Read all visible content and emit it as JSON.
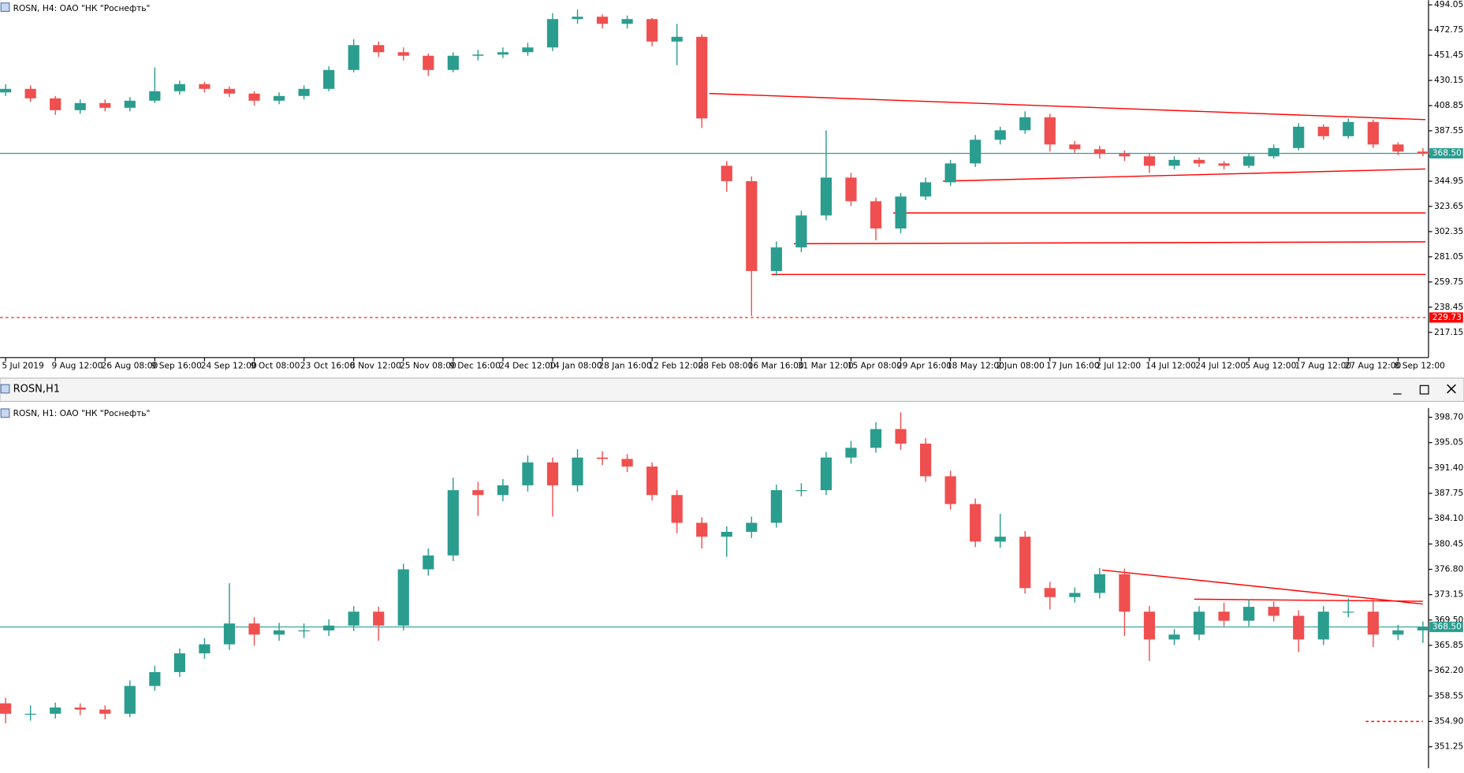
{
  "chart_data": [
    {
      "type": "candlestick",
      "title": "ROSN, H4:  ОАО \"НК \"Роснефть\"",
      "x": [
        "5 Jul 2019",
        null,
        "9 Aug 12:00",
        null,
        "26 Aug 08:00",
        null,
        "9 Sep 16:00",
        null,
        "24 Sep 12:00",
        null,
        "9 Oct 08:00",
        null,
        "23 Oct 16:00",
        null,
        "8 Nov 12:00",
        null,
        "25 Nov 08:00",
        null,
        "9 Dec 16:00",
        null,
        "24 Dec 12:00",
        null,
        "14 Jan 08:00",
        null,
        "28 Jan 16:00",
        null,
        "12 Feb 12:00",
        null,
        "28 Feb 08:00",
        null,
        "16 Mar 16:00",
        null,
        "31 Mar 12:00",
        null,
        "15 Apr 08:00",
        null,
        "29 Apr 16:00",
        null,
        "18 May 12:00",
        null,
        "2 Jun 08:00",
        null,
        "17 Jun 16:00",
        null,
        "2 Jul 12:00",
        null,
        "14 Jul 12:00",
        null,
        "24 Jul 12:00",
        null,
        "5 Aug 12:00",
        null,
        "17 Aug 12:00",
        null,
        "27 Aug 12:00",
        null,
        "8 Sep 12:00",
        null
      ],
      "open": [
        420,
        423,
        415,
        405,
        411,
        407,
        413,
        421,
        427,
        423,
        419,
        413,
        417,
        423,
        439,
        460,
        454,
        451,
        439,
        451,
        452,
        454,
        458,
        482,
        484,
        478,
        482,
        463,
        467,
        358,
        345,
        269,
        289,
        316,
        348,
        328,
        305,
        332,
        344,
        360,
        380,
        388,
        399,
        376,
        372,
        368,
        366,
        358,
        363,
        360,
        358,
        366,
        373,
        391,
        383,
        395,
        376,
        370
      ],
      "high": [
        427,
        426,
        417,
        414,
        414,
        416,
        441,
        430,
        429,
        425,
        421,
        420,
        426,
        442,
        465,
        463,
        458,
        453,
        454,
        456,
        458,
        462,
        487,
        490,
        486,
        485,
        483,
        478,
        469,
        362,
        349,
        294,
        320,
        388,
        352,
        331,
        335,
        348,
        363,
        384,
        391,
        404,
        402,
        379,
        375,
        371,
        369,
        366,
        365,
        362,
        368,
        376,
        394,
        393,
        398,
        397,
        378,
        373
      ],
      "low": [
        417,
        412,
        401,
        402,
        404,
        404,
        411,
        418,
        420,
        416,
        409,
        410,
        414,
        421,
        437,
        450,
        447,
        434,
        437,
        447,
        449,
        451,
        455,
        478,
        474,
        474,
        459,
        443,
        390,
        336,
        231,
        265,
        285,
        312,
        324,
        295,
        301,
        329,
        341,
        357,
        376,
        385,
        370,
        369,
        364,
        362,
        352,
        355,
        357,
        355,
        356,
        364,
        371,
        380,
        381,
        373,
        367,
        366
      ],
      "close": [
        423,
        415,
        405,
        411,
        407,
        413,
        421,
        427,
        423,
        419,
        413,
        417,
        423,
        439,
        460,
        454,
        451,
        439,
        451,
        452,
        454,
        458,
        482,
        484,
        478,
        482,
        463,
        467,
        398,
        345,
        269,
        289,
        316,
        348,
        328,
        305,
        332,
        344,
        360,
        380,
        388,
        399,
        376,
        372,
        368,
        366,
        358,
        363,
        360,
        358,
        366,
        373,
        391,
        383,
        395,
        376,
        370,
        368.5
      ],
      "up_color": "#2a9d8f",
      "down_color": "#ef4f4f",
      "ylim": [
        195.85,
        498
      ],
      "yticks": [
        494.05,
        472.75,
        451.45,
        430.15,
        408.85,
        387.55,
        366.25,
        344.95,
        323.65,
        302.35,
        281.05,
        259.75,
        238.45,
        217.15
      ],
      "price_lines": [
        {
          "value": 368.5,
          "label": "368.50",
          "color": "#2a9d8f",
          "dashed": false
        },
        {
          "value": 229.73,
          "label": "229.73",
          "color": "#ff0000",
          "dashed": true
        }
      ],
      "trendlines": [
        {
          "x": [
            28.3,
            57.1
          ],
          "y": [
            419.1,
            397.0
          ],
          "color": "#ff0000"
        },
        {
          "x": [
            37.7,
            57.1
          ],
          "y": [
            345.0,
            355.3
          ],
          "color": "#ff0000"
        },
        {
          "x": [
            35.7,
            57.1
          ],
          "y": [
            318.1,
            318.1
          ],
          "color": "#ff0000"
        },
        {
          "x": [
            31.7,
            57.1
          ],
          "y": [
            292.1,
            293.7
          ],
          "color": "#ff0000"
        },
        {
          "x": [
            30.8,
            57.1
          ],
          "y": [
            266.1,
            266.1
          ],
          "color": "#ff0000"
        }
      ]
    },
    {
      "type": "candlestick",
      "window_title": "ROSN,H1",
      "title": "ROSN, H1:  ОАО \"НК \"Роснефть\"",
      "open": [
        357.5,
        356.0,
        356.0,
        356.9,
        356.6,
        356.0,
        360.0,
        362.0,
        364.7,
        366.0,
        369.0,
        367.4,
        368.0,
        368.0,
        368.7,
        370.7,
        368.7,
        376.8,
        378.8,
        388.2,
        387.5,
        388.9,
        392.2,
        388.9,
        392.9,
        392.7,
        391.6,
        387.5,
        383.5,
        381.5,
        382.2,
        383.5,
        388.2,
        388.2,
        392.9,
        394.3,
        397.0,
        394.9,
        390.2,
        386.2,
        380.8,
        381.5,
        374.1,
        372.8,
        373.4,
        376.1,
        370.7,
        366.7,
        367.4,
        370.7,
        369.4,
        371.4,
        370.1,
        366.7,
        370.7,
        370.7,
        367.4,
        368.0
      ],
      "high": [
        358.3,
        357.2,
        357.6,
        357.5,
        357.2,
        360.8,
        362.9,
        365.4,
        366.9,
        374.8,
        369.9,
        369.1,
        369.0,
        369.6,
        371.5,
        371.4,
        377.6,
        379.8,
        390.0,
        389.4,
        389.8,
        393.2,
        392.9,
        394.1,
        393.8,
        393.4,
        392.2,
        388.2,
        384.3,
        383.0,
        384.4,
        389.0,
        389.2,
        393.7,
        395.3,
        398.0,
        399.4,
        395.7,
        391.0,
        387.0,
        384.8,
        382.3,
        375.0,
        374.2,
        377.0,
        376.9,
        371.5,
        368.2,
        371.5,
        372.0,
        372.5,
        372.2,
        370.9,
        371.5,
        372.6,
        372.7,
        368.8,
        369.3
      ],
      "low": [
        354.6,
        355.0,
        355.3,
        355.8,
        355.2,
        355.5,
        359.3,
        361.3,
        363.9,
        365.2,
        365.8,
        366.5,
        366.9,
        367.2,
        367.9,
        366.5,
        368.0,
        375.9,
        378.0,
        384.5,
        386.6,
        388.0,
        384.4,
        388.0,
        391.8,
        390.8,
        386.7,
        382.0,
        379.8,
        378.6,
        381.3,
        382.8,
        387.3,
        387.5,
        392.0,
        393.6,
        394.0,
        389.4,
        385.4,
        380.0,
        379.9,
        373.3,
        371.0,
        372.0,
        372.6,
        367.2,
        363.6,
        365.9,
        366.6,
        368.6,
        368.6,
        369.3,
        364.9,
        365.9,
        369.9,
        365.6,
        366.6,
        366.2
      ],
      "close": [
        356.0,
        356.0,
        356.9,
        356.6,
        356.0,
        360.0,
        362.0,
        364.7,
        366.0,
        369.0,
        367.4,
        368.0,
        368.0,
        368.7,
        370.7,
        368.7,
        376.8,
        378.8,
        388.2,
        387.5,
        388.9,
        392.2,
        388.9,
        392.9,
        392.7,
        391.6,
        387.5,
        383.5,
        381.5,
        382.2,
        383.5,
        388.2,
        388.2,
        392.9,
        394.3,
        397.0,
        394.9,
        390.2,
        386.2,
        380.8,
        381.5,
        374.1,
        372.8,
        373.4,
        376.1,
        370.7,
        366.7,
        367.4,
        370.7,
        369.4,
        371.4,
        370.1,
        366.7,
        370.7,
        370.7,
        367.4,
        368.0,
        368.5
      ],
      "up_color": "#2a9d8f",
      "down_color": "#ef4f4f",
      "ylim": [
        348.16,
        400.04
      ],
      "yticks": [
        {
          "value": 398.7,
          "label": "398.70"
        },
        395.05,
        {
          "value": 391.4,
          "label": "391.40"
        },
        387.75,
        {
          "value": 384.1,
          "label": "384.10"
        },
        380.45,
        {
          "value": 376.8,
          "label": "376.80"
        },
        373.15,
        {
          "value": 369.5,
          "label": "369.50"
        },
        365.85,
        {
          "value": 362.2,
          "label": "362.20"
        },
        358.55,
        {
          "value": 354.9,
          "label": "354.90"
        },
        351.25
      ],
      "price_lines": [
        {
          "value": 368.5,
          "label": "368.50",
          "color": "#2a9d8f",
          "dashed": false
        }
      ],
      "trendlines": [
        {
          "x": [
            44.1,
            57.0
          ],
          "y": [
            376.7,
            371.8
          ],
          "color": "#ff0000"
        },
        {
          "x": [
            47.8,
            57.0
          ],
          "y": [
            372.5,
            372.2
          ],
          "color": "#ff0000"
        },
        {
          "x": [
            54.7,
            57.0
          ],
          "y": [
            354.9,
            354.9
          ],
          "color": "#ff0000",
          "dashed": true
        }
      ]
    }
  ]
}
